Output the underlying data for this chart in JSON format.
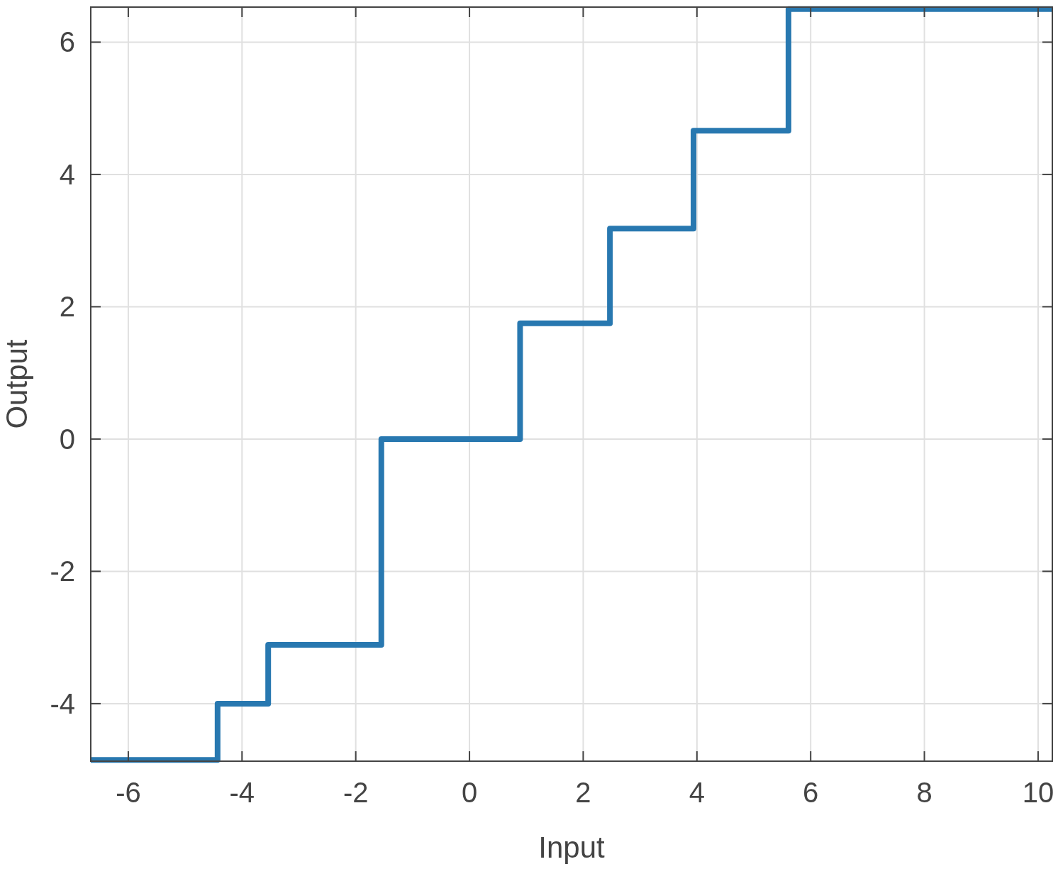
{
  "chart_data": {
    "type": "step",
    "xlabel": "Input",
    "ylabel": "Output",
    "x": [
      -6.66,
      -4.43,
      -3.54,
      -1.55,
      0.89,
      2.47,
      3.94,
      5.61,
      10.25
    ],
    "series": [
      {
        "color": "#2878b0",
        "values": [
          -4.85,
          -4.0,
          -3.11,
          0,
          1.75,
          3.18,
          4.66,
          6.5,
          6.5
        ]
      }
    ],
    "xlim": [
      -6.66,
      10.25
    ],
    "xticks": [
      -6,
      -4,
      -2,
      0,
      2,
      4,
      6,
      8,
      10
    ],
    "ylim": [
      -4.87,
      6.53
    ],
    "yticks": [
      -4,
      -2,
      0,
      2,
      4,
      6
    ],
    "grid": true
  }
}
